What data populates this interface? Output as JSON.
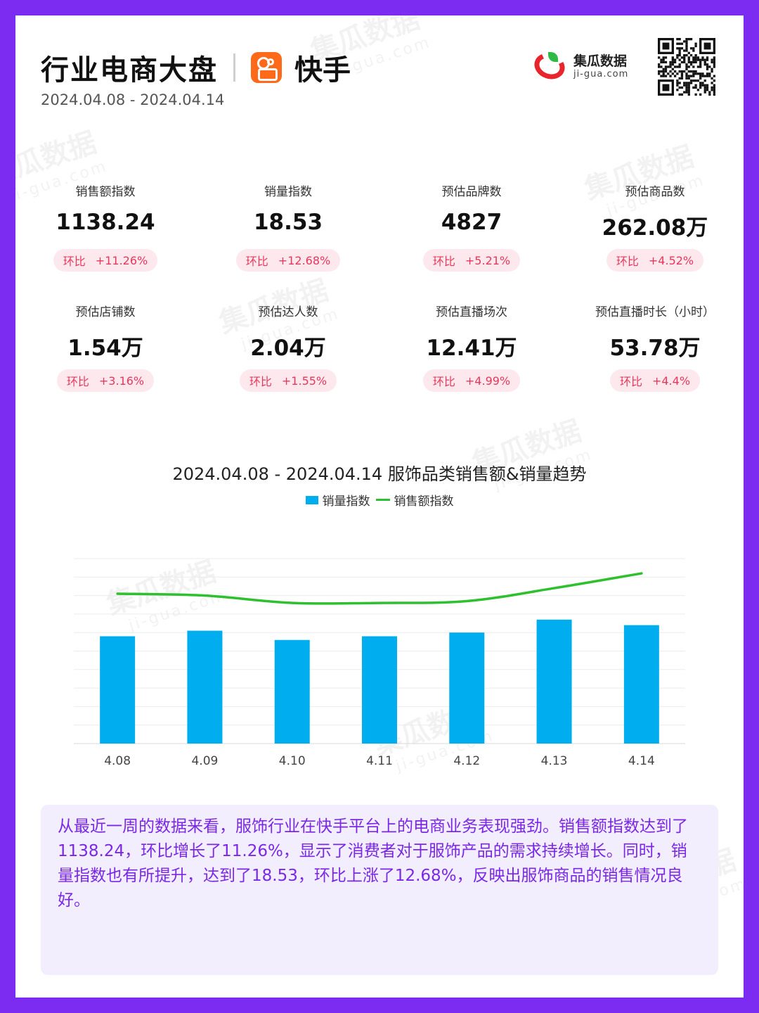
{
  "header": {
    "title": "行业电商大盘",
    "platform": "快手",
    "date_range": "2024.04.08 - 2024.04.14"
  },
  "brand": {
    "name": "集瓜数据",
    "url": "ji-gua.com",
    "logo_colors": {
      "arc": "#e8242c",
      "leaf": "#31b946"
    }
  },
  "watermark": {
    "text": "集瓜数据",
    "url": "ji-gua.com"
  },
  "metrics": [
    {
      "label": "销售额指数",
      "value": "1138.24",
      "change_label": "环比",
      "change": "+11.26%"
    },
    {
      "label": "销量指数",
      "value": "18.53",
      "change_label": "环比",
      "change": "+12.68%"
    },
    {
      "label": "预估品牌数",
      "value": "4827",
      "change_label": "环比",
      "change": "+5.21%"
    },
    {
      "label": "预估商品数",
      "value": "262.08万",
      "change_label": "环比",
      "change": "+4.52%"
    },
    {
      "label": "预估店铺数",
      "value": "1.54万",
      "change_label": "环比",
      "change": "+3.16%"
    },
    {
      "label": "预估达人数",
      "value": "2.04万",
      "change_label": "环比",
      "change": "+1.55%"
    },
    {
      "label": "预估直播场次",
      "value": "12.41万",
      "change_label": "环比",
      "change": "+4.99%"
    },
    {
      "label": "预估直播时长（小时）",
      "value": "53.78万",
      "change_label": "环比",
      "change": "+4.4%"
    }
  ],
  "chart_data": {
    "type": "bar",
    "title": "2024.04.08 - 2024.04.14 服饰品类销售额&销量趋势",
    "categories": [
      "4.08",
      "4.09",
      "4.10",
      "4.11",
      "4.12",
      "4.13",
      "4.14"
    ],
    "series": [
      {
        "name": "销量指数",
        "type": "bar",
        "color": "#00aeef",
        "values": [
          58,
          61,
          56,
          58,
          60,
          67,
          64
        ]
      },
      {
        "name": "销售额指数",
        "type": "line",
        "color": "#2ec02e",
        "values": [
          81,
          80,
          76,
          76,
          77,
          84,
          92
        ]
      }
    ],
    "ylim": [
      0,
      100
    ],
    "grid": true,
    "legend_position": "top-center"
  },
  "summary": "从最近一周的数据来看，服饰行业在快手平台上的电商业务表现强劲。销售额指数达到了1138.24，环比增长了11.26%，显示了消费者对于服饰产品的需求持续增长。同时，销量指数也有所提升，达到了18.53，环比上涨了12.68%，反映出服饰商品的销售情况良好。"
}
